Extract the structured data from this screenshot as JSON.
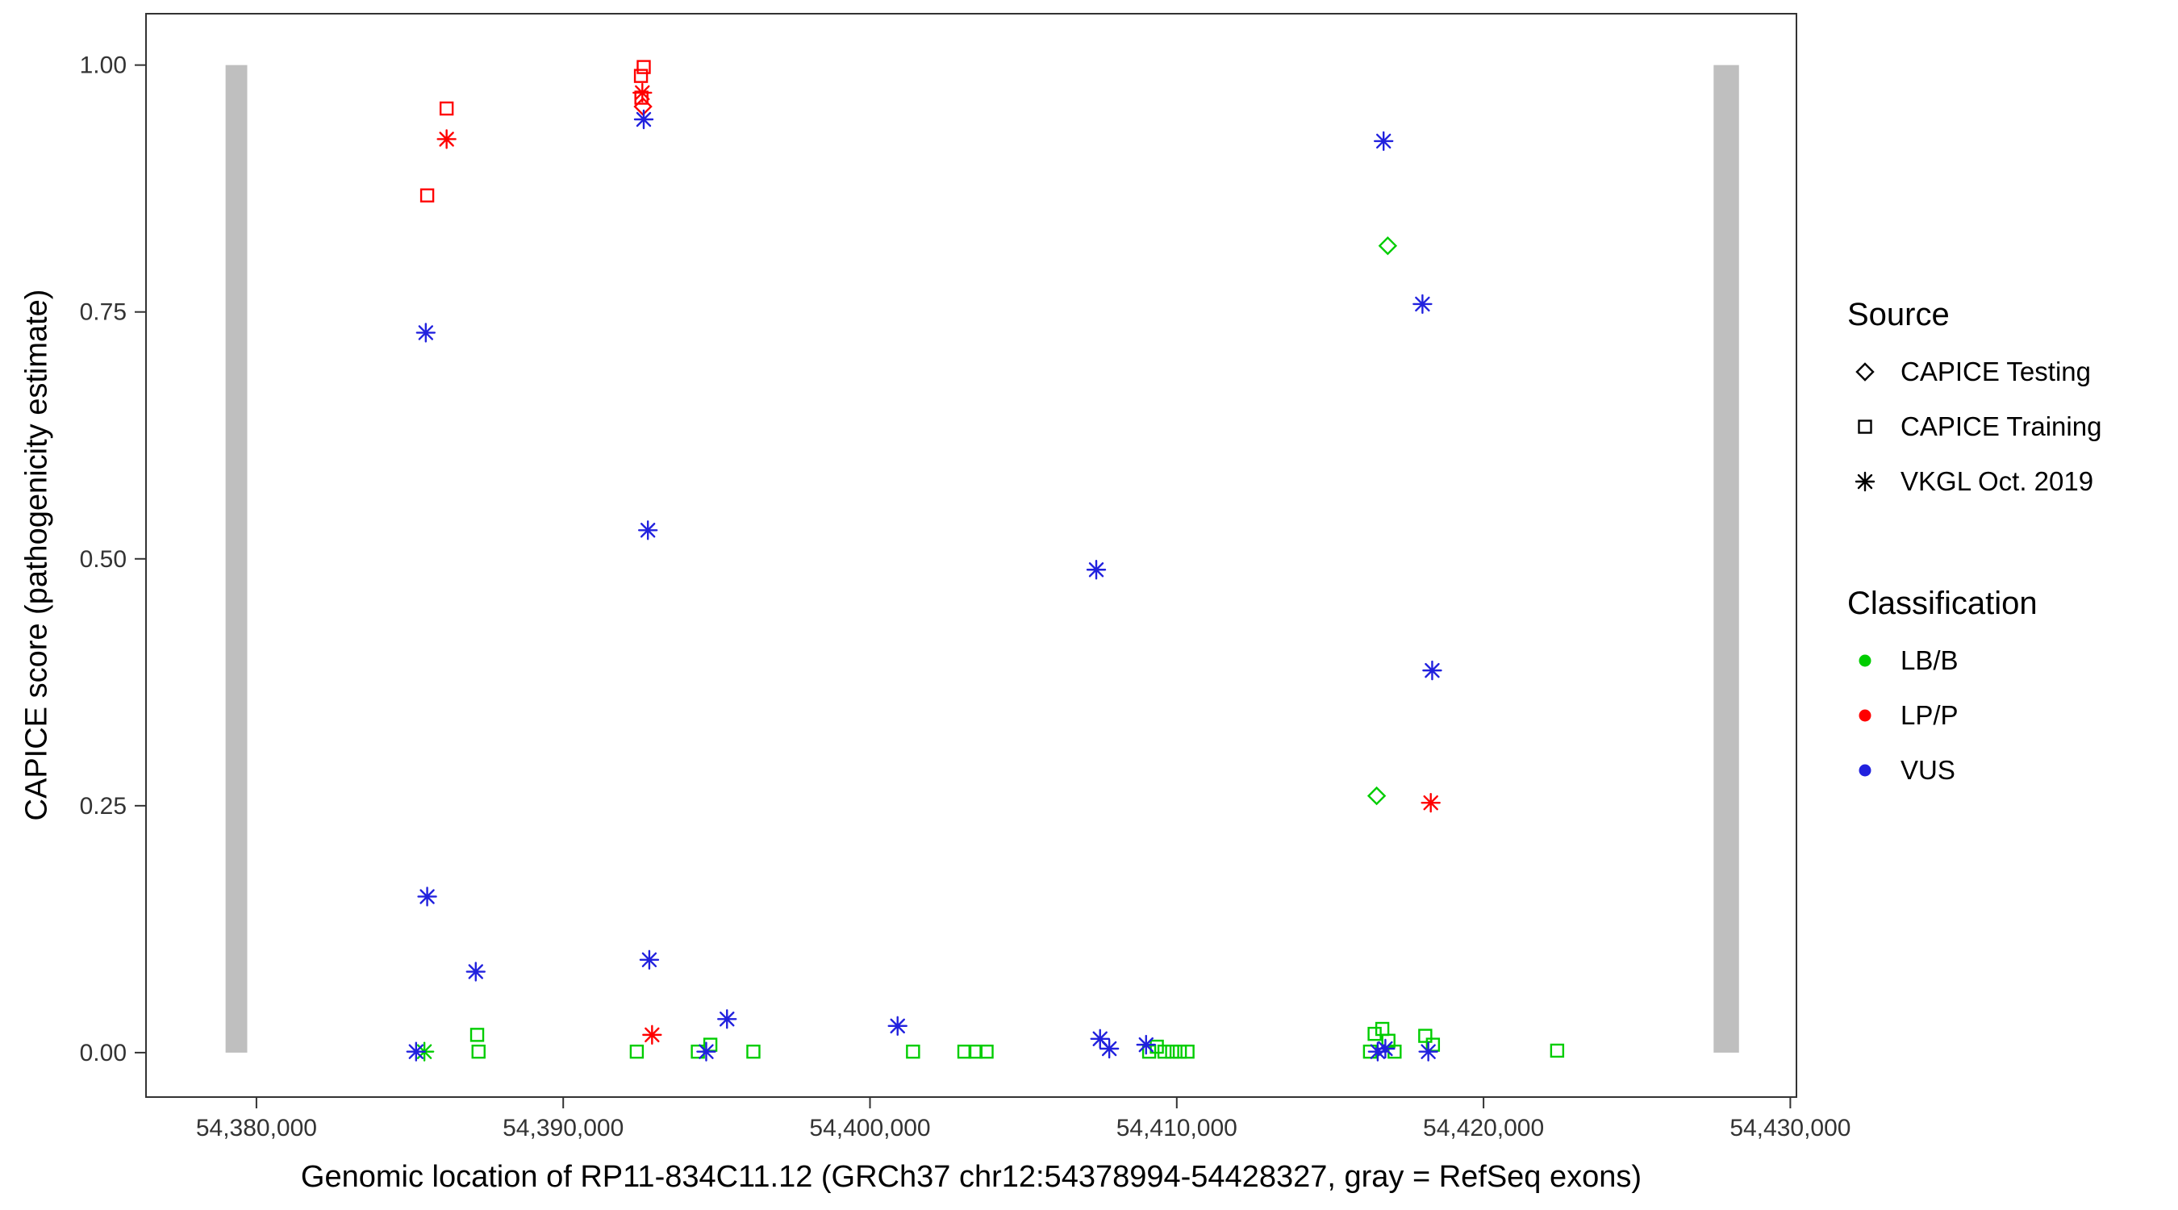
{
  "chart_data": {
    "type": "scatter",
    "title": "",
    "xlabel": "Genomic location of RP11-834C11.12 (GRCh37 chr12:54378994-54428327, gray = RefSeq exons)",
    "ylabel": "CAPICE score (pathogenicity estimate)",
    "xlim": [
      54376400,
      54430200
    ],
    "ylim": [
      -0.045,
      1.052
    ],
    "grid": false,
    "x_ticks": [
      {
        "value": 54380000,
        "label": "54,380,000"
      },
      {
        "value": 54390000,
        "label": "54,390,000"
      },
      {
        "value": 54400000,
        "label": "54,400,000"
      },
      {
        "value": 54410000,
        "label": "54,410,000"
      },
      {
        "value": 54420000,
        "label": "54,420,000"
      },
      {
        "value": 54430000,
        "label": "54,430,000"
      }
    ],
    "y_ticks": [
      {
        "value": 0.0,
        "label": "0.00"
      },
      {
        "value": 0.25,
        "label": "0.25"
      },
      {
        "value": 0.5,
        "label": "0.50"
      },
      {
        "value": 0.75,
        "label": "0.75"
      },
      {
        "value": 1.0,
        "label": "1.00"
      }
    ],
    "exon_color": "#BFBFBF",
    "exon_y_range": [
      0,
      1
    ],
    "exons": [
      {
        "start": 54378994,
        "end": 54379700
      },
      {
        "start": 54427500,
        "end": 54428327
      }
    ],
    "palette": {
      "LB/B": "#00CD00",
      "LP/P": "#FF0000",
      "VUS": "#2121DE"
    },
    "series": [
      {
        "name": "CAPICE Testing / LB/B",
        "source": "CAPICE Testing",
        "classification": "LB/B",
        "shape": "diamond",
        "color": "#00CD00",
        "points": [
          [
            54416516,
            0.26
          ],
          [
            54416878,
            0.817
          ]
        ]
      },
      {
        "name": "CAPICE Testing / LP/P",
        "source": "CAPICE Testing",
        "classification": "LP/P",
        "shape": "diamond",
        "color": "#FF0000",
        "points": [
          [
            54392600,
            0.958
          ]
        ]
      },
      {
        "name": "CAPICE Training / LP/P",
        "source": "CAPICE Training",
        "classification": "LP/P",
        "shape": "square",
        "color": "#FF0000",
        "points": [
          [
            54385566,
            0.868
          ],
          [
            54386199,
            0.956
          ],
          [
            54392534,
            0.989
          ],
          [
            54392624,
            0.998
          ],
          [
            54392550,
            0.967
          ]
        ]
      },
      {
        "name": "CAPICE Training / LB/B",
        "source": "CAPICE Training",
        "classification": "LB/B",
        "shape": "square",
        "color": "#00CD00",
        "points": [
          [
            54387195,
            0.018
          ],
          [
            54387240,
            0.001
          ],
          [
            54392398,
            0.001
          ],
          [
            54394389,
            0.001
          ],
          [
            54394796,
            0.008
          ],
          [
            54396199,
            0.001
          ],
          [
            54401403,
            0.001
          ],
          [
            54403077,
            0.001
          ],
          [
            54403439,
            0.001
          ],
          [
            54403800,
            0.001
          ],
          [
            54409100,
            0.001
          ],
          [
            54409350,
            0.006
          ],
          [
            54409600,
            0.001
          ],
          [
            54409850,
            0.001
          ],
          [
            54410100,
            0.001
          ],
          [
            54410350,
            0.001
          ],
          [
            54416300,
            0.001
          ],
          [
            54416450,
            0.019
          ],
          [
            54416700,
            0.024
          ],
          [
            54416900,
            0.012
          ],
          [
            54417100,
            0.001
          ],
          [
            54418100,
            0.017
          ],
          [
            54418350,
            0.008
          ],
          [
            54422400,
            0.002
          ]
        ]
      },
      {
        "name": "VKGL Oct. 2019 / LP/P",
        "source": "VKGL Oct. 2019",
        "classification": "LP/P",
        "shape": "asterisk",
        "color": "#FF0000",
        "points": [
          [
            54386199,
            0.925
          ],
          [
            54392579,
            0.972
          ],
          [
            54392896,
            0.018
          ],
          [
            54418280,
            0.253
          ]
        ]
      },
      {
        "name": "VKGL Oct. 2019 / LB/B",
        "source": "VKGL Oct. 2019",
        "classification": "LB/B",
        "shape": "asterisk",
        "color": "#00CD00",
        "points": [
          [
            54385475,
            0.001
          ]
        ]
      },
      {
        "name": "VKGL Oct. 2019 / VUS",
        "source": "VKGL Oct. 2019",
        "classification": "VUS",
        "shape": "asterisk",
        "color": "#2121DE",
        "points": [
          [
            54385204,
            0.001
          ],
          [
            54385520,
            0.729
          ],
          [
            54385566,
            0.158
          ],
          [
            54387149,
            0.082
          ],
          [
            54392624,
            0.945
          ],
          [
            54392760,
            0.529
          ],
          [
            54392806,
            0.094
          ],
          [
            54394661,
            0.001
          ],
          [
            54395339,
            0.034
          ],
          [
            54400900,
            0.027
          ],
          [
            54407376,
            0.489
          ],
          [
            54407500,
            0.014
          ],
          [
            54407800,
            0.004
          ],
          [
            54409000,
            0.008
          ],
          [
            54416550,
            0.001
          ],
          [
            54416742,
            0.923
          ],
          [
            54416800,
            0.004
          ],
          [
            54418009,
            0.758
          ],
          [
            54418200,
            0.001
          ],
          [
            54418326,
            0.387
          ]
        ]
      }
    ],
    "legend": {
      "source": {
        "title": "Source",
        "items": [
          {
            "label": "CAPICE Testing",
            "shape": "diamond"
          },
          {
            "label": "CAPICE Training",
            "shape": "square"
          },
          {
            "label": "VKGL Oct. 2019",
            "shape": "asterisk"
          }
        ]
      },
      "classification": {
        "title": "Classification",
        "items": [
          {
            "label": "LB/B",
            "color": "#00CD00"
          },
          {
            "label": "LP/P",
            "color": "#FF0000"
          },
          {
            "label": "VUS",
            "color": "#2121DE"
          }
        ]
      }
    }
  }
}
